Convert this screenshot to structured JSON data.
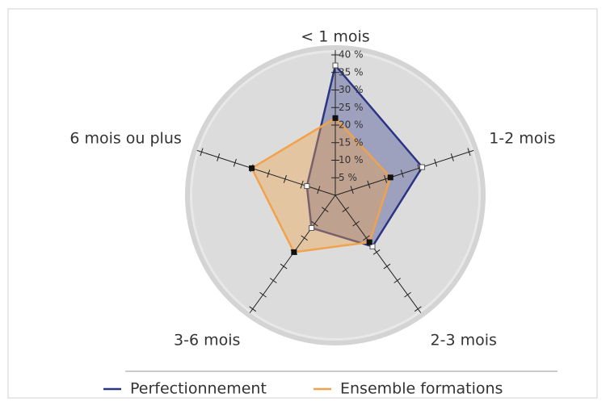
{
  "chart_data": {
    "type": "radar",
    "categories": [
      "< 1 mois",
      "1-2 mois",
      "2-3 mois",
      "3-6 mois",
      "6 mois ou plus"
    ],
    "series": [
      {
        "name": "Perfectionnement",
        "color": "#2b3584",
        "values": [
          37,
          26,
          18,
          11.5,
          8.5
        ]
      },
      {
        "name": "Ensemble formations",
        "color": "#f0a24c",
        "values": [
          22,
          16.5,
          16.5,
          20,
          25
        ]
      }
    ],
    "ylim": [
      0,
      40
    ],
    "yticks": [
      {
        "value": 5,
        "label": "5 %"
      },
      {
        "value": 10,
        "label": "10 %"
      },
      {
        "value": 15,
        "label": "15 %"
      },
      {
        "value": 20,
        "label": "20 %"
      },
      {
        "value": 25,
        "label": "25 %"
      },
      {
        "value": 30,
        "label": "30 %"
      },
      {
        "value": 35,
        "label": "35 %"
      },
      {
        "value": 40,
        "label": "40 %"
      }
    ],
    "legend": "bottom"
  }
}
